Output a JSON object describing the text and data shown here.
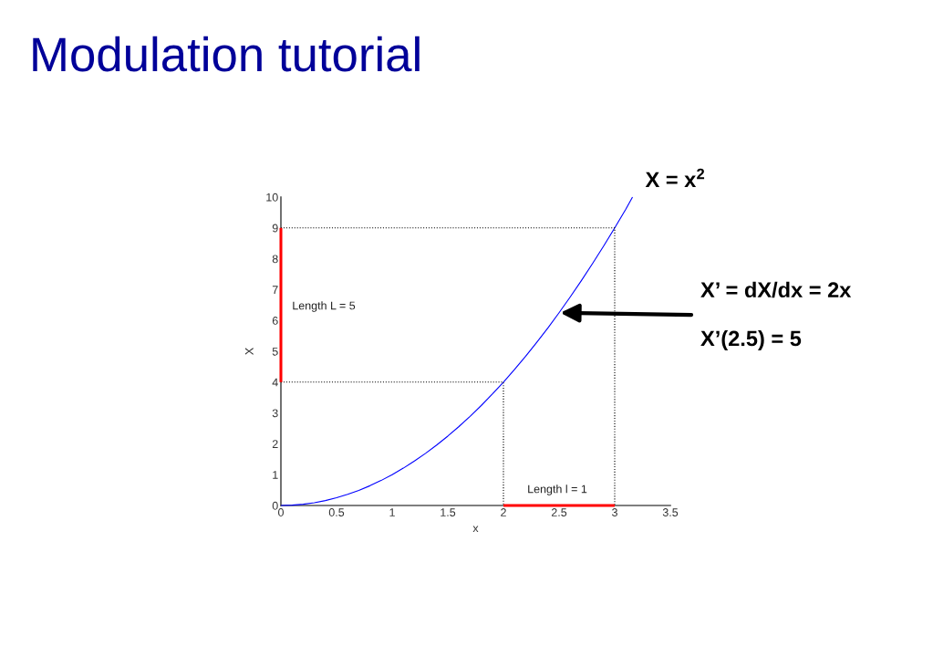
{
  "chart_data": {
    "type": "line",
    "title": "Modulation tutorial",
    "xlabel": "x",
    "ylabel": "X",
    "xlim": [
      0,
      3.5
    ],
    "ylim": [
      0,
      10
    ],
    "xticks": [
      0,
      0.5,
      1,
      1.5,
      2,
      2.5,
      3,
      3.5
    ],
    "yticks": [
      0,
      1,
      2,
      3,
      4,
      5,
      6,
      7,
      8,
      9,
      10
    ],
    "series": [
      {
        "name": "X = x$^{2}$",
        "color": "#0000ff",
        "x": [
          0,
          0.1,
          0.2,
          0.3,
          0.4,
          0.5,
          0.6,
          0.7,
          0.8,
          0.9,
          1,
          1.1,
          1.2,
          1.3,
          1.4,
          1.5,
          1.6,
          1.7,
          1.8,
          1.9,
          2,
          2.1,
          2.2,
          2.3,
          2.4,
          2.5,
          2.6,
          2.7,
          2.8,
          2.9,
          3,
          3.1,
          3.16
        ],
        "values": [
          0,
          0.01,
          0.04,
          0.09,
          0.16,
          0.25,
          0.36,
          0.49,
          0.64,
          0.81,
          1,
          1.21,
          1.44,
          1.69,
          1.96,
          2.25,
          2.56,
          2.89,
          3.24,
          3.61,
          4,
          4.41,
          4.84,
          5.29,
          5.76,
          6.25,
          6.76,
          7.29,
          7.84,
          8.41,
          9,
          9.61,
          10
        ]
      },
      {
        "color": "#000000",
        "line_style": "dotted",
        "x": [
          0,
          3,
          3
        ],
        "values": [
          9,
          9,
          0
        ]
      },
      {
        "color": "#000000",
        "line_style": "dotted",
        "x": [
          0,
          2,
          2
        ],
        "values": [
          4,
          4,
          0
        ]
      },
      {
        "color": "#ff0000",
        "line_style": "solid",
        "x": [
          0,
          0
        ],
        "values": [
          4,
          9
        ]
      },
      {
        "color": "#ff0000",
        "line_style": "solid",
        "x": [
          2,
          3
        ],
        "values": [
          0,
          0
        ]
      }
    ],
    "annotations": [
      "Length L = 5",
      "Length l = 1",
      {
        "text": "X’ = dX/dx = 2x",
        "x": 2.5,
        "y": 6.25
      },
      "X’(2.5) = 5"
    ]
  }
}
